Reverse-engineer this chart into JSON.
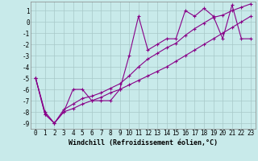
{
  "title": "",
  "xlabel": "Windchill (Refroidissement éolien,°C)",
  "ylabel": "",
  "background_color": "#c8eaea",
  "grid_color": "#a8c8c8",
  "line_color": "#880088",
  "x_data": [
    0,
    1,
    2,
    3,
    4,
    5,
    6,
    7,
    8,
    9,
    10,
    11,
    12,
    13,
    14,
    15,
    16,
    17,
    18,
    19,
    20,
    21,
    22,
    23
  ],
  "y_main": [
    -5,
    -8,
    -9,
    -8,
    -6,
    -6,
    -7,
    -7,
    -7,
    -6,
    -3,
    0.5,
    -2.5,
    -2,
    -1.5,
    -1.5,
    1,
    0.5,
    1.2,
    0.5,
    -1.5,
    1.5,
    -1.5,
    -1.5
  ],
  "y_trend1": [
    -5,
    -8.2,
    -9,
    -8.0,
    -7.7,
    -7.3,
    -7.0,
    -6.7,
    -6.3,
    -6.0,
    -5.6,
    -5.2,
    -4.8,
    -4.4,
    -4.0,
    -3.5,
    -3.0,
    -2.5,
    -2.0,
    -1.5,
    -1.0,
    -0.5,
    0.0,
    0.5
  ],
  "y_trend2": [
    -5,
    -8.2,
    -9,
    -7.8,
    -7.3,
    -6.8,
    -6.6,
    -6.3,
    -5.9,
    -5.5,
    -4.8,
    -4.0,
    -3.3,
    -2.8,
    -2.3,
    -1.9,
    -1.2,
    -0.6,
    -0.1,
    0.4,
    0.6,
    1.0,
    1.3,
    1.6
  ],
  "xlim": [
    -0.5,
    23.5
  ],
  "ylim": [
    -9.5,
    1.8
  ],
  "yticks": [
    1,
    0,
    -1,
    -2,
    -3,
    -4,
    -5,
    -6,
    -7,
    -8,
    -9
  ],
  "xticks": [
    0,
    1,
    2,
    3,
    4,
    5,
    6,
    7,
    8,
    9,
    10,
    11,
    12,
    13,
    14,
    15,
    16,
    17,
    18,
    19,
    20,
    21,
    22,
    23
  ],
  "marker": "+",
  "markersize": 3,
  "linewidth": 0.8,
  "xlabel_fontsize": 6,
  "tick_fontsize": 5.5,
  "font_family": "monospace"
}
